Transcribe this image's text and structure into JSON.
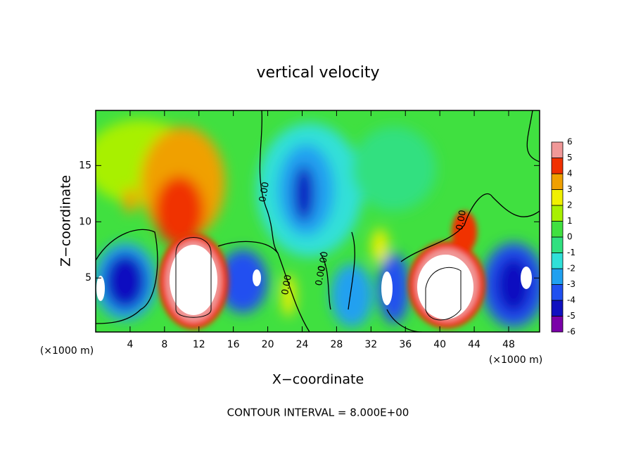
{
  "chart_data": {
    "type": "contour",
    "title": "vertical velocity",
    "xlabel": "X−coordinate",
    "ylabel": "Z−coordinate",
    "x_unit_label": "(×1000 m)",
    "x_unit_label_right": "(×1000 m)",
    "annotation": "CONTOUR INTERVAL = 8.000E+00",
    "contour_labels": [
      "0.00",
      "0.00",
      "0.00",
      "0.00",
      "0.00"
    ],
    "xlim": [
      0,
      51.6
    ],
    "xticks": [
      4,
      8,
      12,
      16,
      20,
      24,
      28,
      32,
      36,
      40,
      44,
      48
    ],
    "ylim": [
      0.2,
      19.9
    ],
    "yticks": [
      5,
      10,
      15
    ],
    "colorbar": {
      "levels": [
        -6,
        -5,
        -4,
        -3,
        -2,
        -1,
        0,
        1,
        2,
        3,
        4,
        5,
        6
      ],
      "colors": [
        "#7a00a8",
        "#1010c0",
        "#2050f0",
        "#20a0f0",
        "#30e0d8",
        "#30e080",
        "#40e040",
        "#a8f000",
        "#f0f000",
        "#f0a000",
        "#f03000",
        "#f09898"
      ]
    }
  }
}
